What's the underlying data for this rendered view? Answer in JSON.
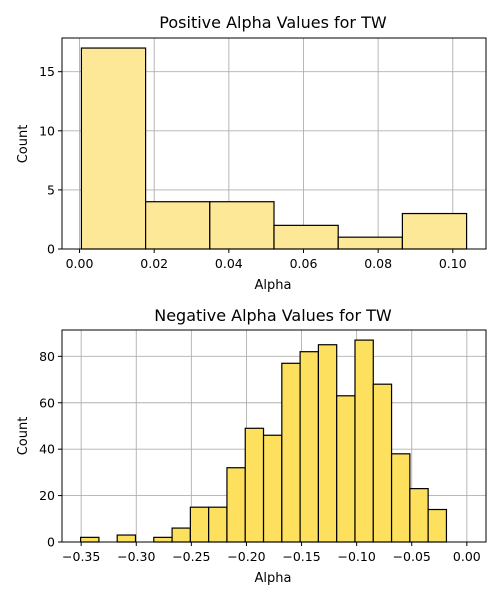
{
  "chart_data": [
    {
      "type": "bar",
      "title": "Positive Alpha Values for TW",
      "xlabel": "Alpha",
      "ylabel": "Count",
      "bins": [
        {
          "x0": 0.0005,
          "x1": 0.0177,
          "count": 17
        },
        {
          "x0": 0.0177,
          "x1": 0.0349,
          "count": 4
        },
        {
          "x0": 0.0349,
          "x1": 0.0521,
          "count": 4
        },
        {
          "x0": 0.0521,
          "x1": 0.0693,
          "count": 2
        },
        {
          "x0": 0.0693,
          "x1": 0.0865,
          "count": 1
        },
        {
          "x0": 0.0865,
          "x1": 0.1037,
          "count": 3
        }
      ],
      "xlim": [
        -0.0047,
        0.1089
      ],
      "ylim": [
        0,
        17.85
      ],
      "xticks": [
        0.0,
        0.02,
        0.04,
        0.06,
        0.08,
        0.1
      ],
      "xtick_labels": [
        "0.00",
        "0.02",
        "0.04",
        "0.06",
        "0.08",
        "0.10"
      ],
      "yticks": [
        0,
        5,
        10,
        15
      ],
      "ytick_labels": [
        "0",
        "5",
        "10",
        "15"
      ],
      "grid": true,
      "bar_color": "#fde897"
    },
    {
      "type": "bar",
      "title": "Negative Alpha Values for TW",
      "xlabel": "Alpha",
      "ylabel": "Count",
      "bins": [
        {
          "x0": -0.3505,
          "x1": -0.3339,
          "count": 2
        },
        {
          "x0": -0.3339,
          "x1": -0.3173,
          "count": 0
        },
        {
          "x0": -0.3173,
          "x1": -0.3007,
          "count": 3
        },
        {
          "x0": -0.3007,
          "x1": -0.2841,
          "count": 0
        },
        {
          "x0": -0.2841,
          "x1": -0.2675,
          "count": 2
        },
        {
          "x0": -0.2675,
          "x1": -0.2509,
          "count": 6
        },
        {
          "x0": -0.2509,
          "x1": -0.2343,
          "count": 15
        },
        {
          "x0": -0.2343,
          "x1": -0.2177,
          "count": 15
        },
        {
          "x0": -0.2177,
          "x1": -0.2011,
          "count": 32
        },
        {
          "x0": -0.2011,
          "x1": -0.1845,
          "count": 49
        },
        {
          "x0": -0.1845,
          "x1": -0.1679,
          "count": 46
        },
        {
          "x0": -0.1679,
          "x1": -0.1513,
          "count": 77
        },
        {
          "x0": -0.1513,
          "x1": -0.1347,
          "count": 82
        },
        {
          "x0": -0.1347,
          "x1": -0.1181,
          "count": 85
        },
        {
          "x0": -0.1181,
          "x1": -0.1015,
          "count": 63
        },
        {
          "x0": -0.1015,
          "x1": -0.0849,
          "count": 87
        },
        {
          "x0": -0.0849,
          "x1": -0.0683,
          "count": 68
        },
        {
          "x0": -0.0683,
          "x1": -0.0517,
          "count": 38
        },
        {
          "x0": -0.0517,
          "x1": -0.0351,
          "count": 23
        },
        {
          "x0": -0.0351,
          "x1": -0.0185,
          "count": 14
        }
      ],
      "xlim": [
        -0.3674,
        0.0174
      ],
      "ylim": [
        0,
        91.35
      ],
      "xticks": [
        -0.35,
        -0.3,
        -0.25,
        -0.2,
        -0.15,
        -0.1,
        -0.05,
        0.0
      ],
      "xtick_labels": [
        "−0.35",
        "−0.30",
        "−0.25",
        "−0.20",
        "−0.15",
        "−0.10",
        "−0.05",
        "0.00"
      ],
      "yticks": [
        0,
        20,
        40,
        60,
        80
      ],
      "ytick_labels": [
        "0",
        "20",
        "40",
        "60",
        "80"
      ],
      "grid": true,
      "bar_color": "#fde05d"
    }
  ]
}
